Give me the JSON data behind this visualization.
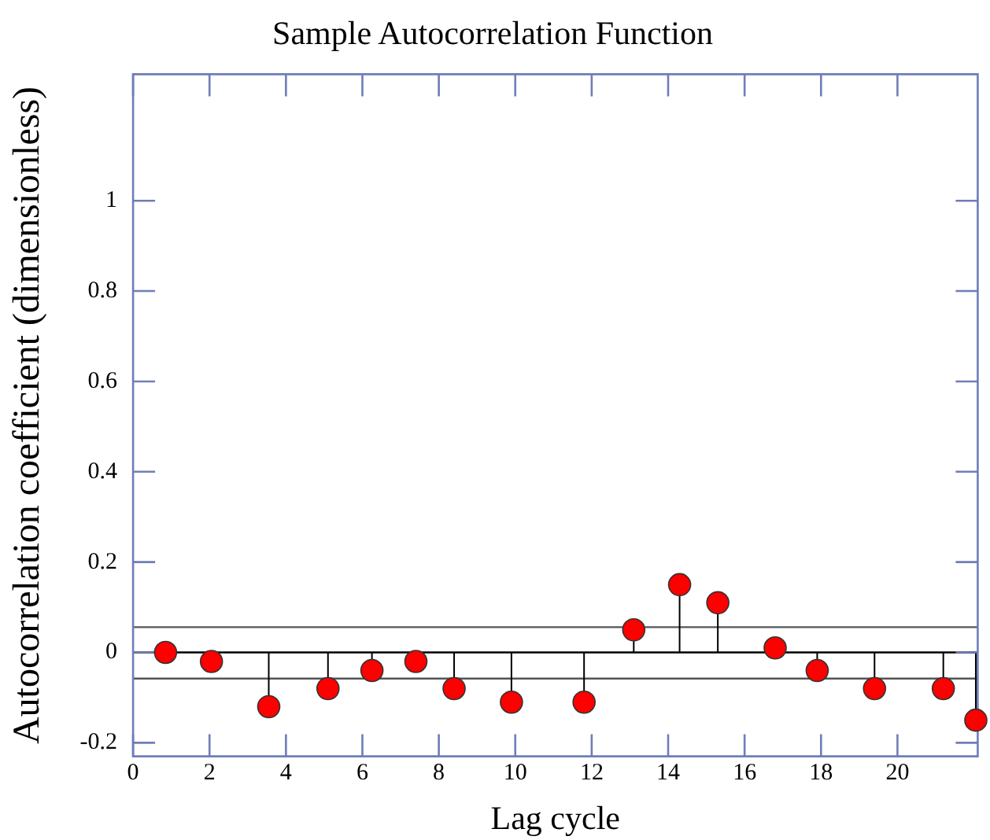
{
  "chart_data": {
    "type": "lollipop",
    "title": "Sample Autocorrelation Function",
    "xlabel": "Lag cycle",
    "ylabel": "Autocorrelation coefficient (dimensionless)",
    "x": [
      0.85,
      2.05,
      3.55,
      5.1,
      6.25,
      7.4,
      8.4,
      9.9,
      11.8,
      13.1,
      14.3,
      15.3,
      16.8,
      17.9,
      19.4,
      21.2,
      22.05
    ],
    "values": [
      0.0,
      -0.02,
      -0.12,
      -0.08,
      -0.04,
      -0.02,
      -0.08,
      -0.11,
      -0.11,
      0.05,
      0.15,
      0.11,
      0.01,
      -0.04,
      -0.08,
      -0.08,
      -0.15
    ],
    "color": "#ff0000",
    "marker": "circle",
    "xlim": [
      0,
      22.1
    ],
    "ylim": [
      -0.23,
      1.28
    ],
    "xticks": [
      0,
      2,
      4,
      6,
      8,
      10,
      12,
      14,
      16,
      18,
      20
    ],
    "yticks": [
      {
        "value": -0.2,
        "label": "-0.2"
      },
      0,
      0.2,
      0.4,
      0.6,
      0.8,
      1
    ],
    "ref_lines": [
      {
        "axis": "y",
        "value": 0.056,
        "color": "#555555"
      },
      {
        "axis": "y",
        "value": 0,
        "color": "#000000"
      },
      {
        "axis": "y",
        "value": -0.058,
        "color": "#555555"
      }
    ],
    "grid": false,
    "legend": false
  }
}
